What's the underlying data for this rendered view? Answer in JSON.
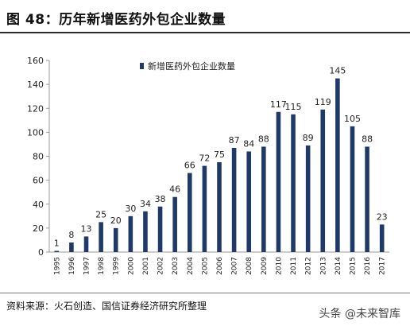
{
  "header": {
    "title": "图 48：历年新增医药外包企业数量"
  },
  "footer": {
    "source": "资料来源：火石创造、国信证券经济研究所整理",
    "watermark": "头条 @未来智库"
  },
  "colors": {
    "bar": "#1f3a68",
    "axis": "#999999",
    "text": "#222222"
  },
  "chart_data": {
    "type": "bar",
    "title": "",
    "xlabel": "",
    "ylabel": "",
    "ylim": [
      0,
      160
    ],
    "yticks": [
      0,
      20,
      40,
      60,
      80,
      100,
      120,
      140,
      160
    ],
    "grid": false,
    "legend": {
      "label": "新增医药外包企业数量",
      "position": "top-center"
    },
    "categories": [
      "1995",
      "1996",
      "1997",
      "1998",
      "1999",
      "2000",
      "2001",
      "2002",
      "2003",
      "2004",
      "2005",
      "2006",
      "2007",
      "2008",
      "2009",
      "2010",
      "2011",
      "2012",
      "2013",
      "2014",
      "2015",
      "2016",
      "2017"
    ],
    "values": [
      1,
      8,
      13,
      25,
      20,
      30,
      34,
      38,
      46,
      66,
      72,
      75,
      87,
      84,
      88,
      117,
      115,
      89,
      119,
      145,
      105,
      88,
      23
    ]
  }
}
